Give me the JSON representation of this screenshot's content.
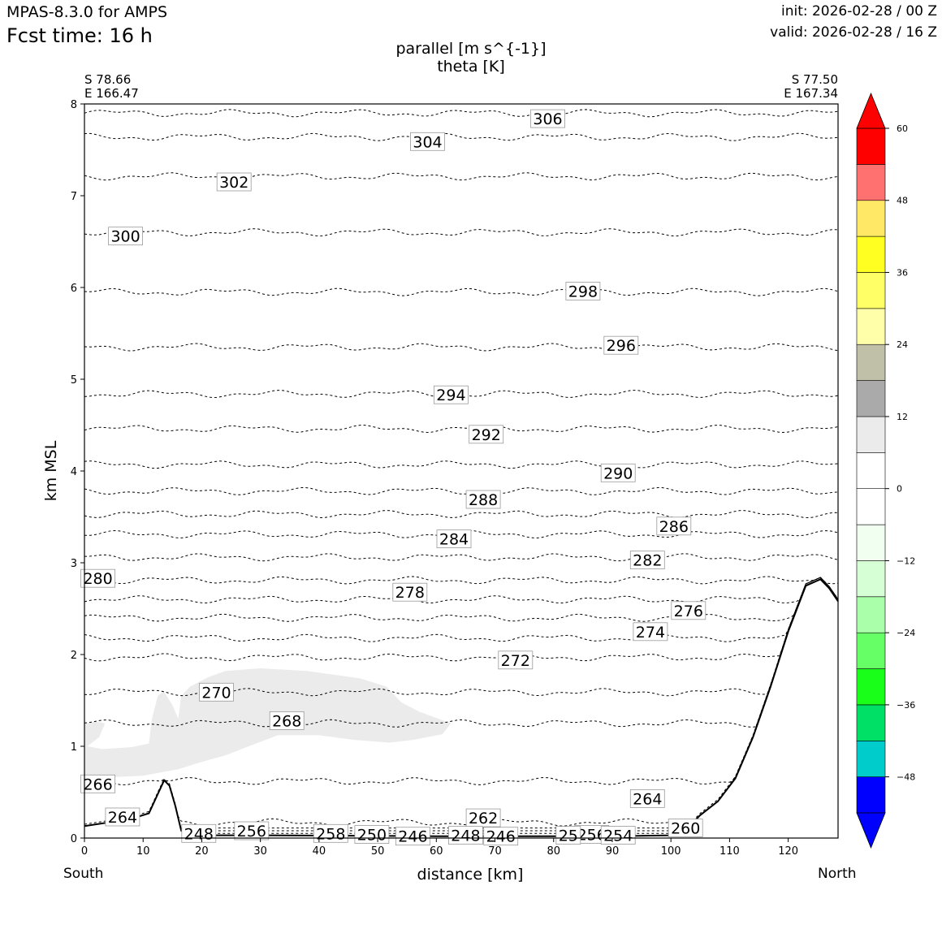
{
  "header": {
    "model": "MPAS-8.3.0 for AMPS",
    "fcst_time": "Fcst time:   16 h",
    "init": "init: 2026-02-28 / 00 Z",
    "valid": "valid: 2026-02-28 / 16 Z"
  },
  "section": {
    "start_lat": "S 78.66",
    "start_lon": "E 166.47",
    "end_lat": "S 77.50",
    "end_lon": "E 167.34",
    "south": "South",
    "north": "North"
  },
  "chart_data": {
    "type": "contour",
    "title": [
      "parallel [m s^{-1}]",
      "theta [K]"
    ],
    "xlabel": "distance [km]",
    "ylabel": "km MSL",
    "xlim": [
      0,
      128.5
    ],
    "ylim": [
      0,
      8
    ],
    "xticks": [
      0,
      10,
      20,
      30,
      40,
      50,
      60,
      70,
      80,
      90,
      100,
      110,
      120
    ],
    "yticks": [
      0,
      1,
      2,
      3,
      4,
      5,
      6,
      7,
      8
    ],
    "theta_contours": [
      {
        "level": 306,
        "h": 7.9
      },
      {
        "level": 304,
        "h": 7.64
      },
      {
        "level": 302,
        "h": 7.21
      },
      {
        "level": 300,
        "h": 6.6
      },
      {
        "level": 298,
        "h": 5.95
      },
      {
        "level": 296,
        "h": 5.35
      },
      {
        "level": 294,
        "h": 4.84
      },
      {
        "level": 292,
        "h": 4.46
      },
      {
        "level": 290,
        "h": 4.07
      },
      {
        "level": 288,
        "h": 3.78
      },
      {
        "level": 286,
        "h": 3.53
      },
      {
        "level": 284,
        "h": 3.31
      },
      {
        "level": 282,
        "h": 3.06
      },
      {
        "level": 280,
        "h": 2.81
      },
      {
        "level": 278,
        "h": 2.6
      },
      {
        "level": 276,
        "h": 2.4
      },
      {
        "level": 274,
        "h": 2.18
      },
      {
        "level": 272,
        "h": 1.97
      },
      {
        "level": 270,
        "h": 1.59
      },
      {
        "level": 268,
        "h": 1.25
      },
      {
        "level": 266,
        "h": 0.62
      },
      {
        "level": 264,
        "h": 0.17
      }
    ],
    "contour_labels": [
      {
        "text": "306",
        "x": 79,
        "y": 7.84
      },
      {
        "text": "304",
        "x": 58.5,
        "y": 7.59
      },
      {
        "text": "302",
        "x": 25.5,
        "y": 7.15
      },
      {
        "text": "300",
        "x": 7,
        "y": 6.56
      },
      {
        "text": "298",
        "x": 85,
        "y": 5.96
      },
      {
        "text": "296",
        "x": 91.5,
        "y": 5.37
      },
      {
        "text": "294",
        "x": 62.5,
        "y": 4.83
      },
      {
        "text": "292",
        "x": 68.5,
        "y": 4.4
      },
      {
        "text": "290",
        "x": 91,
        "y": 3.98
      },
      {
        "text": "288",
        "x": 68,
        "y": 3.69
      },
      {
        "text": "286",
        "x": 100.5,
        "y": 3.4
      },
      {
        "text": "284",
        "x": 63,
        "y": 3.26
      },
      {
        "text": "282",
        "x": 96,
        "y": 3.03
      },
      {
        "text": "280",
        "x": 2.3,
        "y": 2.83
      },
      {
        "text": "278",
        "x": 55.5,
        "y": 2.68
      },
      {
        "text": "276",
        "x": 103,
        "y": 2.48
      },
      {
        "text": "274",
        "x": 96.5,
        "y": 2.25
      },
      {
        "text": "272",
        "x": 73.5,
        "y": 1.94
      },
      {
        "text": "270",
        "x": 22.5,
        "y": 1.59
      },
      {
        "text": "268",
        "x": 34.5,
        "y": 1.28
      },
      {
        "text": "266",
        "x": 2.3,
        "y": 0.59
      },
      {
        "text": "264",
        "x": 6.5,
        "y": 0.23
      },
      {
        "text": "264",
        "x": 96,
        "y": 0.43
      },
      {
        "text": "262",
        "x": 68,
        "y": 0.22
      },
      {
        "text": "260",
        "x": 102.5,
        "y": 0.11
      },
      {
        "text": "258",
        "x": 42,
        "y": 0.05
      },
      {
        "text": "256",
        "x": 28.5,
        "y": 0.08
      },
      {
        "text": "256",
        "x": 86.5,
        "y": 0.04
      },
      {
        "text": "254",
        "x": 91,
        "y": 0.03
      },
      {
        "text": "250",
        "x": 49,
        "y": 0.04
      },
      {
        "text": "248",
        "x": 19.5,
        "y": 0.05
      },
      {
        "text": "248",
        "x": 65,
        "y": 0.03
      },
      {
        "text": "246",
        "x": 56,
        "y": 0.02
      },
      {
        "text": "246",
        "x": 71,
        "y": 0.02
      },
      {
        "text": "25",
        "x": 82.5,
        "y": 0.03
      }
    ],
    "terrain": [
      {
        "x": 0,
        "h": 0.13
      },
      {
        "x": 5,
        "h": 0.18
      },
      {
        "x": 9,
        "h": 0.23
      },
      {
        "x": 11,
        "h": 0.27
      },
      {
        "x": 12.5,
        "h": 0.48
      },
      {
        "x": 13.6,
        "h": 0.63
      },
      {
        "x": 14.5,
        "h": 0.57
      },
      {
        "x": 15.5,
        "h": 0.35
      },
      {
        "x": 16.5,
        "h": 0.08
      },
      {
        "x": 18,
        "h": 0.03
      },
      {
        "x": 30,
        "h": 0.03
      },
      {
        "x": 60,
        "h": 0.02
      },
      {
        "x": 90,
        "h": 0.02
      },
      {
        "x": 100,
        "h": 0.03
      },
      {
        "x": 103,
        "h": 0.12
      },
      {
        "x": 105,
        "h": 0.25
      },
      {
        "x": 108,
        "h": 0.4
      },
      {
        "x": 111,
        "h": 0.65
      },
      {
        "x": 114,
        "h": 1.1
      },
      {
        "x": 117,
        "h": 1.65
      },
      {
        "x": 120,
        "h": 2.25
      },
      {
        "x": 123,
        "h": 2.75
      },
      {
        "x": 125.5,
        "h": 2.82
      },
      {
        "x": 127,
        "h": 2.72
      },
      {
        "x": 128.5,
        "h": 2.58
      }
    ],
    "wind_shading": {
      "fill": "#ebebeb",
      "range": [
        6,
        12
      ],
      "outline": [
        [
          0,
          1.25
        ],
        [
          2,
          1.27
        ],
        [
          3.5,
          1.25
        ],
        [
          2.5,
          1.1
        ],
        [
          0.5,
          1.0
        ],
        [
          3,
          0.97
        ],
        [
          8,
          0.99
        ],
        [
          11,
          1.03
        ],
        [
          11.5,
          1.3
        ],
        [
          12.5,
          1.55
        ],
        [
          13.5,
          1.6
        ],
        [
          15,
          1.45
        ],
        [
          16,
          1.3
        ],
        [
          16.5,
          1.55
        ],
        [
          18,
          1.65
        ],
        [
          21,
          1.75
        ],
        [
          24,
          1.82
        ],
        [
          30,
          1.85
        ],
        [
          38,
          1.82
        ],
        [
          47,
          1.74
        ],
        [
          51.5,
          1.65
        ],
        [
          54,
          1.48
        ],
        [
          57,
          1.38
        ],
        [
          62.5,
          1.25
        ],
        [
          61,
          1.13
        ],
        [
          56,
          1.07
        ],
        [
          52,
          1.04
        ],
        [
          46,
          1.07
        ],
        [
          40,
          1.12
        ],
        [
          33,
          1.12
        ],
        [
          28,
          1.0
        ],
        [
          24,
          0.9
        ],
        [
          20,
          0.83
        ],
        [
          16,
          0.75
        ],
        [
          10,
          0.68
        ],
        [
          0,
          0.65
        ]
      ]
    },
    "colorbar": {
      "ticks": [
        60,
        48,
        36,
        24,
        12,
        0,
        -12,
        -24,
        -36,
        -48
      ],
      "tick_labels": [
        "60",
        "48",
        "36",
        "24",
        "12",
        "0",
        "−12",
        "−24",
        "−36",
        "−48"
      ],
      "bounds": [
        -54,
        -48,
        -42,
        -36,
        -30,
        -24,
        -18,
        -12,
        -6,
        0,
        6,
        12,
        18,
        24,
        30,
        36,
        42,
        48,
        54,
        60
      ],
      "colors": [
        "#0000ff",
        "#00cccc",
        "#00e066",
        "#19ff19",
        "#66ff66",
        "#aaffaa",
        "#d6ffd6",
        "#f0fff0",
        "#ffffff",
        "#ffffff",
        "#ebebeb",
        "#aaaaaa",
        "#c0c0a8",
        "#ffffaa",
        "#ffff66",
        "#ffff22",
        "#ffe866",
        "#ff7070",
        "#ff0000"
      ],
      "over_color": "#ff0000",
      "under_color": "#0000ff"
    }
  }
}
